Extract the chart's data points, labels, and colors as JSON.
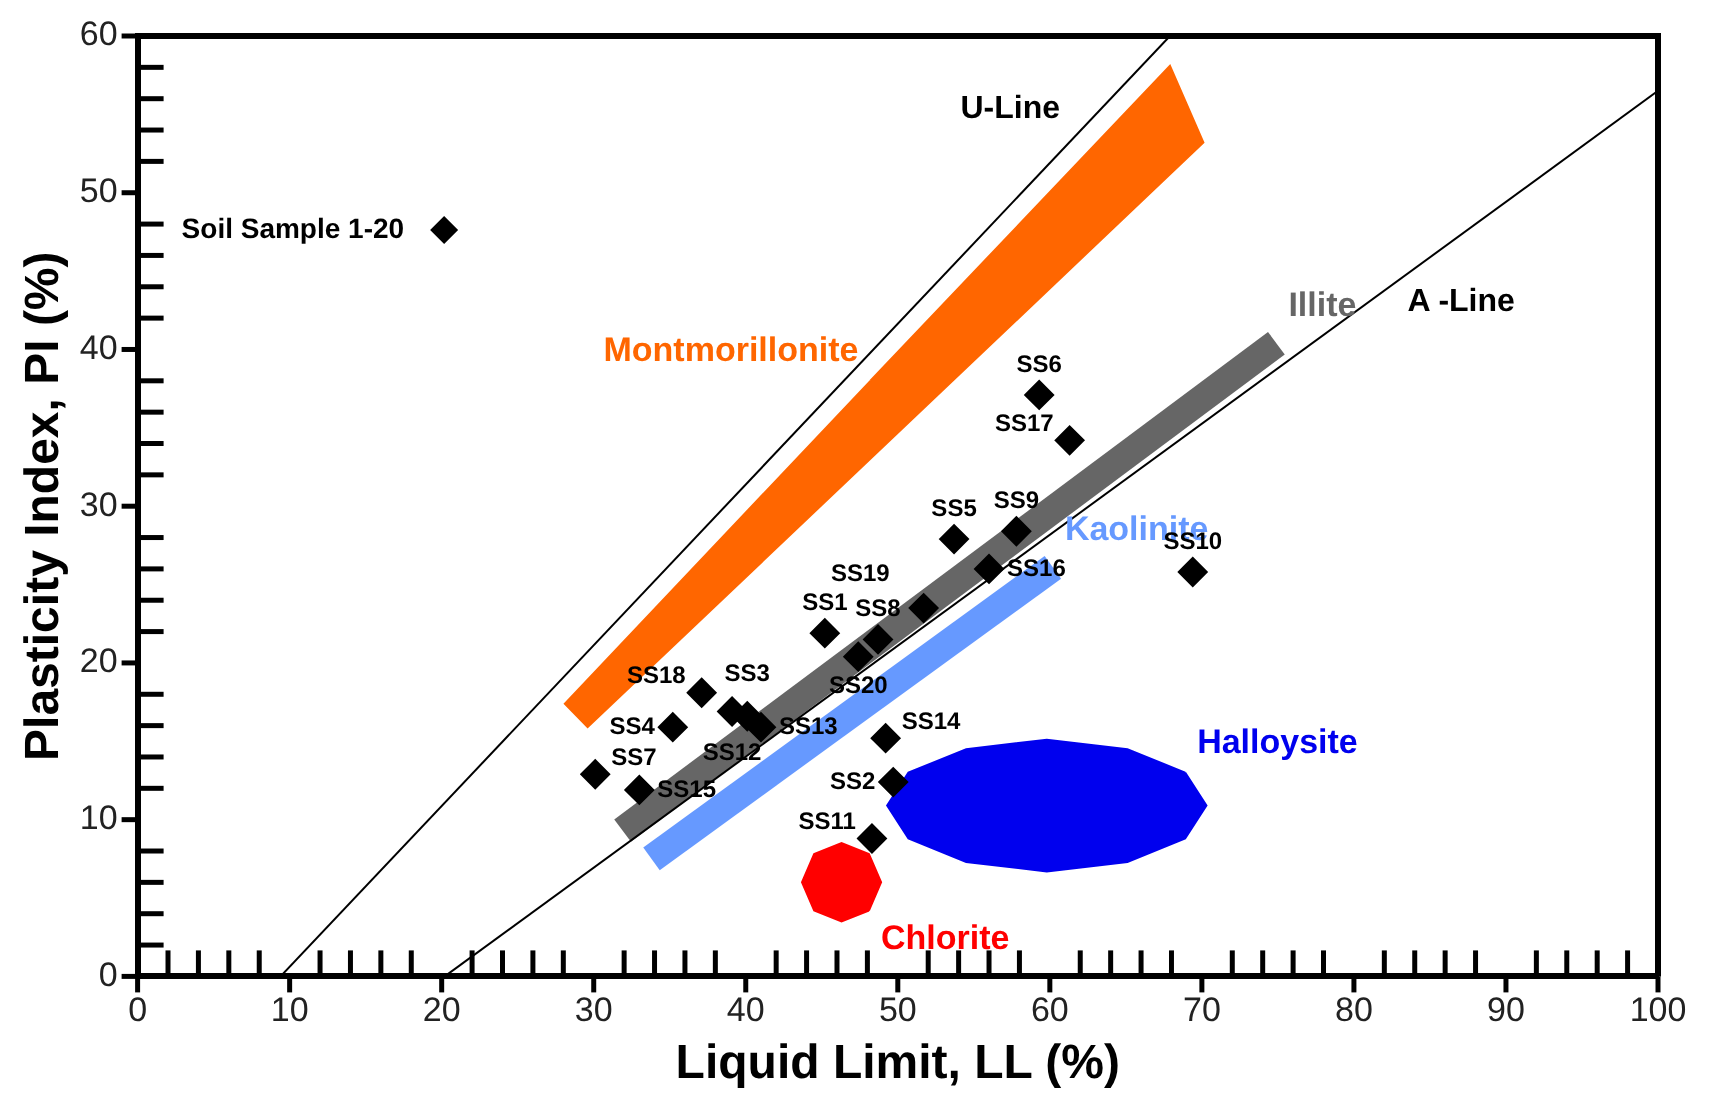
{
  "chart_data": {
    "type": "scatter",
    "xlabel": "Liquid Limit, LL (%)",
    "ylabel": "Plasticity Index, PI (%)",
    "xlim": [
      0,
      100
    ],
    "ylim": [
      0,
      60
    ],
    "xticks": [
      0,
      {
        "value": 2,
        "label": null
      },
      {
        "value": 4,
        "label": null
      },
      {
        "value": 6,
        "label": null
      },
      {
        "value": 8,
        "label": null
      },
      10,
      {
        "value": 12,
        "label": null
      },
      {
        "value": 14,
        "label": null
      },
      {
        "value": 16,
        "label": null
      },
      {
        "value": 18,
        "label": null
      },
      20,
      {
        "value": 22,
        "label": null
      },
      {
        "value": 24,
        "label": null
      },
      {
        "value": 26,
        "label": null
      },
      {
        "value": 28,
        "label": null
      },
      30,
      {
        "value": 32,
        "label": null
      },
      {
        "value": 34,
        "label": null
      },
      {
        "value": 36,
        "label": null
      },
      {
        "value": 38,
        "label": null
      },
      40,
      {
        "value": 42,
        "label": null
      },
      {
        "value": 44,
        "label": null
      },
      {
        "value": 46,
        "label": null
      },
      {
        "value": 48,
        "label": null
      },
      50,
      {
        "value": 52,
        "label": null
      },
      {
        "value": 54,
        "label": null
      },
      {
        "value": 56,
        "label": null
      },
      {
        "value": 58,
        "label": null
      },
      60,
      {
        "value": 62,
        "label": null
      },
      {
        "value": 64,
        "label": null
      },
      {
        "value": 66,
        "label": null
      },
      {
        "value": 68,
        "label": null
      },
      70,
      {
        "value": 72,
        "label": null
      },
      {
        "value": 74,
        "label": null
      },
      {
        "value": 76,
        "label": null
      },
      {
        "value": 78,
        "label": null
      },
      80,
      {
        "value": 82,
        "label": null
      },
      {
        "value": 84,
        "label": null
      },
      {
        "value": 86,
        "label": null
      },
      {
        "value": 88,
        "label": null
      },
      90,
      {
        "value": 92,
        "label": null
      },
      {
        "value": 94,
        "label": null
      },
      {
        "value": 96,
        "label": null
      },
      {
        "value": 98,
        "label": null
      },
      100
    ],
    "yticks": [
      0,
      {
        "value": 2,
        "label": null
      },
      {
        "value": 4,
        "label": null
      },
      {
        "value": 6,
        "label": null
      },
      {
        "value": 8,
        "label": null
      },
      10,
      {
        "value": 12,
        "label": null
      },
      {
        "value": 14,
        "label": null
      },
      {
        "value": 16,
        "label": null
      },
      {
        "value": 18,
        "label": null
      },
      20,
      {
        "value": 22,
        "label": null
      },
      {
        "value": 24,
        "label": null
      },
      {
        "value": 26,
        "label": null
      },
      {
        "value": 28,
        "label": null
      },
      30,
      {
        "value": 32,
        "label": null
      },
      {
        "value": 34,
        "label": null
      },
      {
        "value": 36,
        "label": null
      },
      {
        "value": 38,
        "label": null
      },
      40,
      {
        "value": 42,
        "label": null
      },
      {
        "value": 44,
        "label": null
      },
      {
        "value": 46,
        "label": null
      },
      {
        "value": 48,
        "label": null
      },
      50,
      {
        "value": 52,
        "label": null
      },
      {
        "value": 54,
        "label": null
      },
      {
        "value": 56,
        "label": null
      },
      {
        "value": 58,
        "label": null
      },
      60
    ],
    "grid": false,
    "legend": "top left",
    "annotations": [
      {
        "text": "U-Line",
        "x": 63.3,
        "y": 55.3
      },
      {
        "text": "A -Line",
        "x": 80.9,
        "y": 43
      }
    ],
    "series": [
      {
        "type": "area",
        "name": "Montmorillonite",
        "color": "#ff6600",
        "x": [
          48.2,
          28.1,
          29.6,
          70.1,
          67.9,
          48.2
        ],
        "values": [
          38,
          17.4,
          15.9,
          53.2,
          58.1,
          38
        ]
      },
      {
        "type": "line",
        "name": "Illite",
        "color": "#666666",
        "x": [
          31.9,
          74.9
        ],
        "values": [
          9.3,
          40.4
        ]
      },
      {
        "type": "line",
        "name": "Kaolinite",
        "color": "#6699ff",
        "x": [
          33.8,
          60.2
        ],
        "values": [
          7.5,
          26.1
        ]
      },
      {
        "type": "area",
        "name": "Halloysite",
        "color": "#0000ee",
        "x": [
          68.9,
          65.1,
          59.8,
          54.5,
          50.7,
          49.3,
          50.7,
          54.5,
          59.8,
          65.1,
          68.9,
          70.3,
          68.9
        ],
        "values": [
          13.0,
          14.5,
          15.1,
          14.5,
          13.0,
          10.9,
          8.8,
          7.3,
          6.7,
          7.3,
          8.8,
          10.9,
          13.0
        ]
      },
      {
        "type": "area",
        "name": "Chlorite",
        "color": "#ff0000",
        "x": [
          48.1,
          48.9,
          48.1,
          46.3,
          44.5,
          43.7,
          44.5,
          46.3,
          48.1
        ],
        "values": [
          4.2,
          6.0,
          7.8,
          8.5,
          7.8,
          6.0,
          4.2,
          3.5,
          4.2
        ]
      },
      {
        "type": "line",
        "color": "#000000",
        "x": [
          9.4,
          67.9
        ],
        "values": [
          0,
          60
        ]
      },
      {
        "type": "line",
        "color": "#000000",
        "x": [
          20.2,
          100
        ],
        "values": [
          0,
          56.5
        ]
      },
      {
        "type": "scatter",
        "name": "Soil Sample 1-20",
        "color": "#000000",
        "marker": "diamond",
        "x": [
          45.2,
          49.7,
          40.1,
          35.2,
          53.7,
          59.3,
          30.1,
          48.7,
          57.8,
          69.4,
          48.3,
          39.1,
          41.0,
          49.2,
          33.0,
          56.0,
          61.3,
          37.1,
          51.7,
          47.4
        ],
        "values": [
          21.9,
          12.4,
          16.6,
          15.9,
          27.9,
          37.1,
          12.9,
          21.5,
          28.4,
          25.8,
          8.8,
          16.9,
          15.9,
          15.2,
          11.9,
          26.0,
          34.2,
          18.1,
          23.5,
          20.4
        ],
        "value_labels": [
          "SS1",
          "SS2",
          "SS3",
          "SS4",
          "SS5",
          "SS6",
          "SS7",
          "SS8",
          "SS9",
          "SS10",
          "SS11",
          "SS12",
          "SS13",
          "SS14",
          "SS15",
          "SS16",
          "SS17",
          "SS18",
          "SS19",
          "SS20"
        ]
      }
    ]
  }
}
